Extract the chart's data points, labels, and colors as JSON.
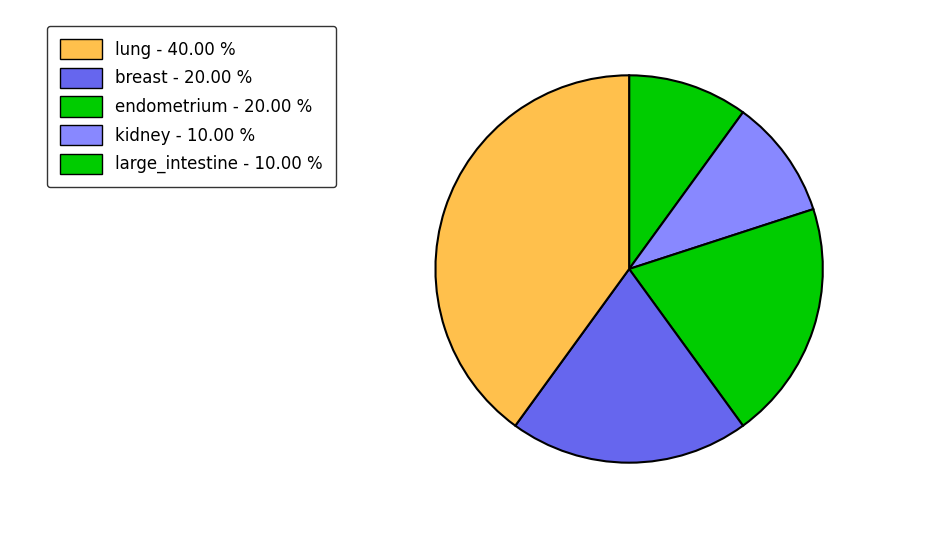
{
  "legend_labels": [
    "lung",
    "breast",
    "endometrium",
    "kidney",
    "large_intestine"
  ],
  "legend_colors": [
    "#FFC04C",
    "#6666EE",
    "#00CC00",
    "#8888FF",
    "#00CC00"
  ],
  "legend_percentages": [
    "40.00 %",
    "20.00 %",
    "20.00 %",
    "10.00 %",
    "10.00 %"
  ],
  "pie_order_labels": [
    "large_intestine",
    "kidney",
    "endometrium",
    "breast",
    "lung"
  ],
  "pie_order_sizes": [
    10,
    10,
    20,
    20,
    40
  ],
  "pie_order_colors": [
    "#00CC00",
    "#8888FF",
    "#00CC00",
    "#6666EE",
    "#FFC04C"
  ],
  "startangle": 90,
  "counterclock": false,
  "edge_color": "black",
  "edge_linewidth": 1.5,
  "background_color": "#ffffff",
  "figure_width": 9.39,
  "figure_height": 5.38,
  "dpi": 100,
  "legend_fontsize": 12,
  "legend_handleheight": 1.5,
  "legend_handlelength": 2.5,
  "legend_borderpad": 0.8,
  "legend_labelspacing": 0.5
}
